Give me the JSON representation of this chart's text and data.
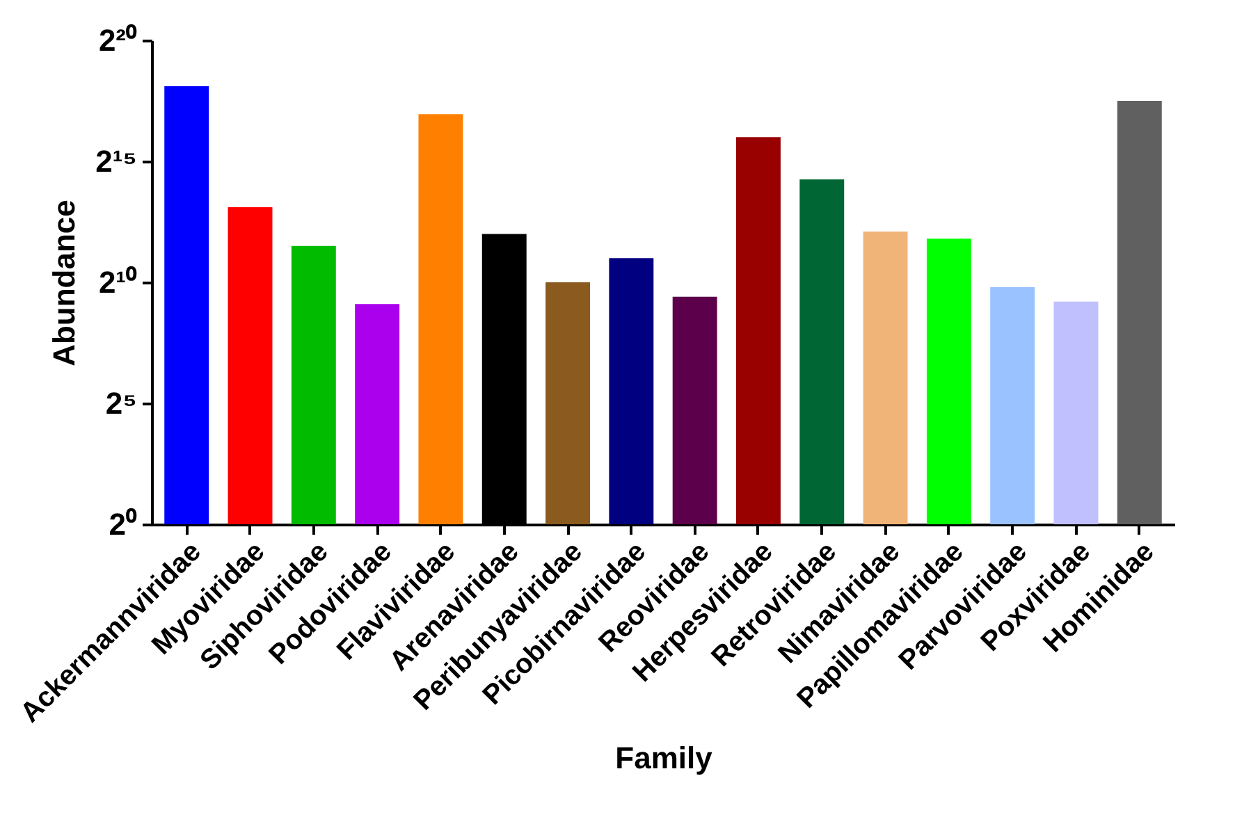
{
  "chart_data": {
    "type": "bar",
    "xlabel": "Family",
    "ylabel": "Abundance",
    "categories": [
      "Ackermannviridae",
      "Myoviridae",
      "Siphoviridae",
      "Podoviridae",
      "Flaviviridae",
      "Arenaviridae",
      "Peribunyaviridae",
      "Picobirnaviridae",
      "Reoviridae",
      "Herpesviridae",
      "Retroviridae",
      "Nimaviridae",
      "Papillomaviridae",
      "Parvoviridae",
      "Poxviridae",
      "Hominidae"
    ],
    "values": [
      281000,
      8780,
      2900,
      549,
      126600,
      4096,
      1024,
      2048,
      676,
      65536,
      19500,
      4390,
      3570,
      891,
      588,
      185000
    ],
    "colors": [
      "#0000ff",
      "#ff0000",
      "#00bb00",
      "#aa00ee",
      "#ff8000",
      "#000000",
      "#8b5a1e",
      "#000080",
      "#5c004c",
      "#990000",
      "#006633",
      "#f0b478",
      "#00ff00",
      "#99c2ff",
      "#c0c0ff",
      "#606060"
    ],
    "log": "y",
    "ylim": [
      1,
      1048576
    ],
    "yticks": [
      {
        "value": 1,
        "label": "2⁰"
      },
      {
        "value": 32,
        "label": "2⁵"
      },
      {
        "value": 1024,
        "label": "2¹⁰"
      },
      {
        "value": 32768,
        "label": "2¹⁵"
      },
      {
        "value": 1048576,
        "label": "2²⁰"
      }
    ],
    "grid": false
  }
}
